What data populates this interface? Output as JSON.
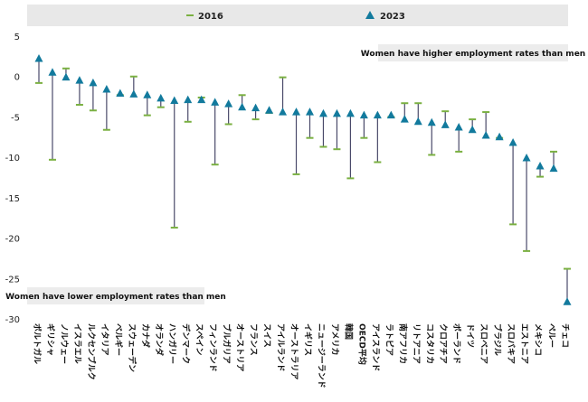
{
  "chart_data": {
    "type": "dot-range",
    "title": "",
    "xlabel": "",
    "ylabel": "",
    "ylim": [
      -30,
      5
    ],
    "yticks": [
      5,
      0,
      -5,
      -10,
      -15,
      -20,
      -25,
      -30
    ],
    "grid": false,
    "legend": {
      "position": "top",
      "entries": [
        {
          "name": "2016",
          "marker": "dash",
          "color": "#7ab041"
        },
        {
          "name": "2023",
          "marker": "triangle",
          "color": "#127a9d"
        }
      ]
    },
    "annotations": {
      "top": "Women have higher employment rates than men",
      "bottom": "Women have lower employment rates than men"
    },
    "categories": [
      "ポルトガル",
      "ギリシャ",
      "ノルウェー",
      "イスラエル",
      "ルクセンブルク",
      "イタリア",
      "ベルギー",
      "スウェーデン",
      "カナダ",
      "オランダ",
      "ハンガリー",
      "デンマーク",
      "スペイン",
      "フィンランド",
      "ブルガリア",
      "オーストリア",
      "フランス",
      "スイス",
      "アイルランド",
      "オーストラリア",
      "イギリス",
      "ニュージーランド",
      "アメリカ",
      "韓国",
      "OECD平均",
      "アイスランド",
      "ラトビア",
      "南アフリカ",
      "リトアニア",
      "コスタリカ",
      "クロアチア",
      "ポーランド",
      "ドイツ",
      "スロベニア",
      "ブラジル",
      "スロバキア",
      "エストニア",
      "メキシコ",
      "ペルー",
      "チェコ"
    ],
    "series": [
      {
        "name": "2016",
        "values": [
          -0.8,
          -10.3,
          1.0,
          -3.5,
          -4.2,
          -6.6,
          -2.3,
          0.0,
          -4.8,
          -3.8,
          -18.7,
          -5.6,
          -2.6,
          -10.9,
          -5.9,
          -2.3,
          -5.3,
          -4.5,
          -0.1,
          -12.1,
          -7.6,
          -8.7,
          -9.0,
          -12.6,
          -7.6,
          -10.6,
          -5.0,
          -3.3,
          -3.3,
          -9.7,
          -4.3,
          -9.3,
          -5.3,
          -4.4,
          -7.6,
          -18.3,
          -21.6,
          -12.4,
          -9.3,
          -23.8
        ]
      },
      {
        "name": "2023",
        "values": [
          2.2,
          0.5,
          -0.1,
          -0.5,
          -0.8,
          -1.6,
          -2.1,
          -2.2,
          -2.3,
          -2.7,
          -3.0,
          -2.9,
          -2.9,
          -3.2,
          -3.4,
          -3.8,
          -3.9,
          -4.2,
          -4.4,
          -4.4,
          -4.4,
          -4.6,
          -4.6,
          -4.6,
          -4.8,
          -4.8,
          -4.8,
          -5.3,
          -5.6,
          -5.7,
          -6.0,
          -6.3,
          -6.6,
          -7.3,
          -7.5,
          -8.2,
          -10.1,
          -11.1,
          -11.4,
          -27.9
        ]
      }
    ]
  }
}
